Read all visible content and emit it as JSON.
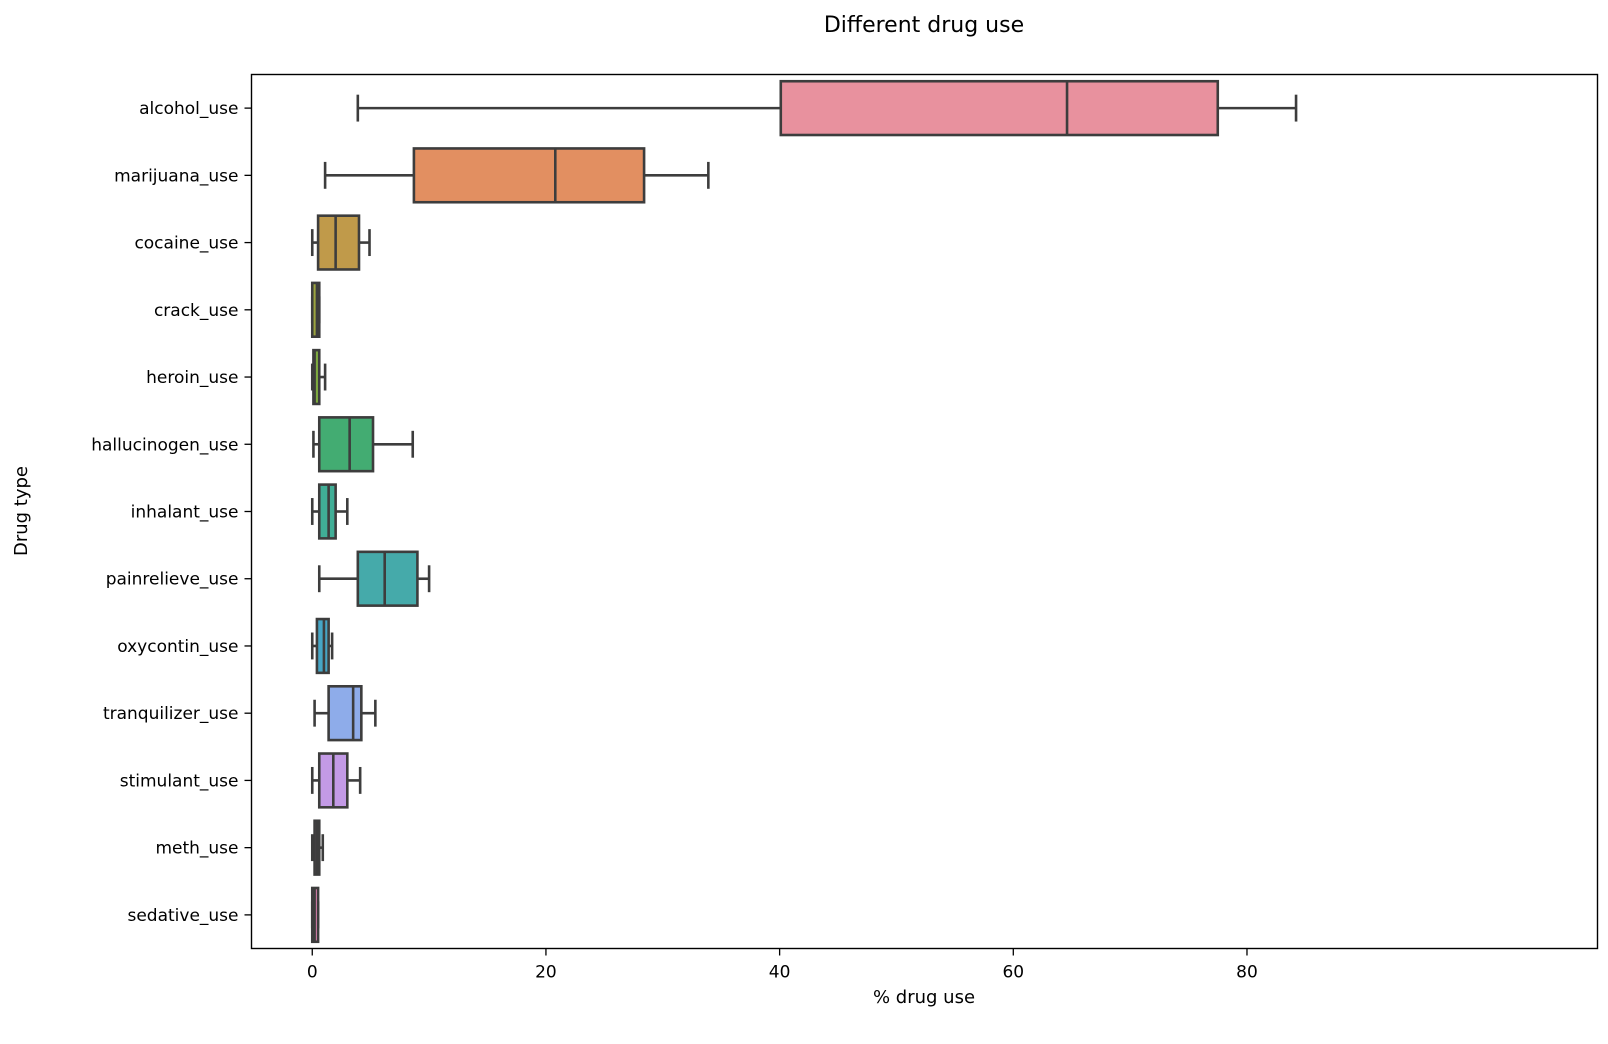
{
  "chart_data": {
    "type": "box",
    "orientation": "horizontal",
    "title": "Different drug use",
    "xlabel": "% drug use",
    "ylabel": "Drug type",
    "xlim": [
      -5.2,
      110
    ],
    "xticks": [
      0,
      20,
      40,
      60,
      80
    ],
    "grid": false,
    "legend": "none",
    "categories": [
      "alcohol_use",
      "marijuana_use",
      "cocaine_use",
      "crack_use",
      "heroin_use",
      "hallucinogen_use",
      "inhalant_use",
      "painrelieve_use",
      "oxycontin_use",
      "tranquilizer_use",
      "stimulant_use",
      "meth_use",
      "sedative_use"
    ],
    "boxes": [
      {
        "category": "alcohol_use",
        "whisker_low": 3.9,
        "q1": 40.1,
        "median": 64.6,
        "q3": 77.5,
        "whisker_high": 84.2,
        "color": "#e8919e"
      },
      {
        "category": "marijuana_use",
        "whisker_low": 1.1,
        "q1": 8.7,
        "median": 20.8,
        "q3": 28.4,
        "whisker_high": 33.9,
        "color": "#e28f61"
      },
      {
        "category": "cocaine_use",
        "whisker_low": 0.0,
        "q1": 0.5,
        "median": 2.0,
        "q3": 4.0,
        "whisker_high": 4.9,
        "color": "#c09a4a"
      },
      {
        "category": "crack_use",
        "whisker_low": 0.0,
        "q1": 0.0,
        "median": 0.4,
        "q3": 0.6,
        "whisker_high": 0.6,
        "color": "#9ba33f"
      },
      {
        "category": "heroin_use",
        "whisker_low": 0.0,
        "q1": 0.1,
        "median": 0.2,
        "q3": 0.6,
        "whisker_high": 1.1,
        "color": "#7eaa3f"
      },
      {
        "category": "hallucinogen_use",
        "whisker_low": 0.1,
        "q1": 0.6,
        "median": 3.2,
        "q3": 5.2,
        "whisker_high": 8.6,
        "color": "#43ac72"
      },
      {
        "category": "inhalant_use",
        "whisker_low": 0.0,
        "q1": 0.6,
        "median": 1.4,
        "q3": 2.0,
        "whisker_high": 3.0,
        "color": "#40ae96"
      },
      {
        "category": "painrelieve_use",
        "whisker_low": 0.6,
        "q1": 3.9,
        "median": 6.2,
        "q3": 9.0,
        "whisker_high": 10.0,
        "color": "#45aaaa"
      },
      {
        "category": "oxycontin_use",
        "whisker_low": 0.0,
        "q1": 0.4,
        "median": 1.0,
        "q3": 1.4,
        "whisker_high": 1.7,
        "color": "#46a6c6"
      },
      {
        "category": "tranquilizer_use",
        "whisker_low": 0.2,
        "q1": 1.4,
        "median": 3.5,
        "q3": 4.2,
        "whisker_high": 5.4,
        "color": "#8eacea"
      },
      {
        "category": "stimulant_use",
        "whisker_low": 0.0,
        "q1": 0.6,
        "median": 1.8,
        "q3": 3.0,
        "whisker_high": 4.1,
        "color": "#c39ae6"
      },
      {
        "category": "meth_use",
        "whisker_low": 0.0,
        "q1": 0.2,
        "median": 0.4,
        "q3": 0.6,
        "whisker_high": 0.9,
        "color": "#e286d8"
      },
      {
        "category": "sedative_use",
        "whisker_low": 0.0,
        "q1": 0.0,
        "median": 0.2,
        "q3": 0.5,
        "whisker_high": 0.5,
        "color": "#e986b8"
      }
    ],
    "line_color": "#3d3d3d"
  }
}
